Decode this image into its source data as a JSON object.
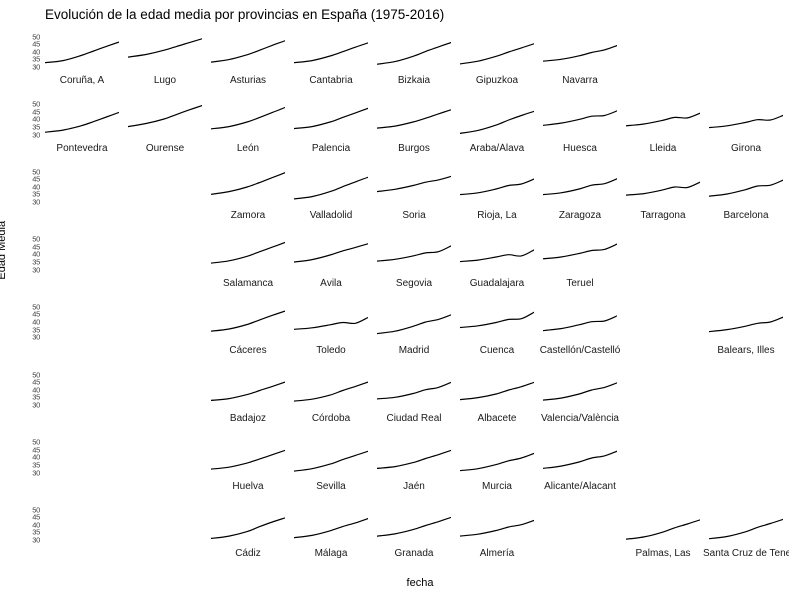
{
  "title": "Evolución de la edad media por provincias en España (1975-2016)",
  "axes": {
    "x_label": "fecha",
    "y_label": "Edad Media"
  },
  "colors": {
    "line": "#000000",
    "axis_text": "#404040",
    "strip_text": "#1a1a1a",
    "background": "#ffffff"
  },
  "chart_data": {
    "type": "line",
    "layout": "geofacet-grid-small-multiples",
    "title": "Evolución de la edad media por provincias en España (1975-2016)",
    "xlabel": "fecha",
    "ylabel": "Edad Media",
    "grid_rows": 8,
    "grid_cols": 9,
    "x": [
      1975,
      1985,
      1995,
      2002,
      2009,
      2016
    ],
    "x_range": [
      1975,
      2016
    ],
    "y_ticks": [
      50,
      45,
      40,
      35,
      30
    ],
    "y_range": [
      28,
      52.3
    ],
    "legend": "none",
    "facets": [
      {
        "label": "Coruña, A",
        "row": 1,
        "col": 1,
        "values": [
          32.8,
          34.2,
          37.5,
          40.5,
          43.5,
          46.3
        ]
      },
      {
        "label": "Lugo",
        "row": 1,
        "col": 2,
        "values": [
          36.5,
          38.2,
          41.0,
          43.5,
          46.0,
          48.5
        ]
      },
      {
        "label": "Asturias",
        "row": 1,
        "col": 3,
        "values": [
          33.2,
          34.8,
          38.0,
          41.0,
          44.2,
          47.2
        ]
      },
      {
        "label": "Cantabria",
        "row": 1,
        "col": 4,
        "values": [
          32.8,
          34.2,
          37.2,
          40.0,
          43.0,
          45.8
        ]
      },
      {
        "label": "Bizkaia",
        "row": 1,
        "col": 5,
        "values": [
          31.8,
          33.5,
          37.0,
          40.2,
          43.2,
          46.0
        ]
      },
      {
        "label": "Gipuzkoa",
        "row": 1,
        "col": 6,
        "values": [
          32.0,
          33.8,
          37.0,
          39.8,
          42.5,
          45.2
        ]
      },
      {
        "label": "Navarra",
        "row": 1,
        "col": 7,
        "values": [
          33.8,
          35.0,
          37.3,
          39.5,
          41.2,
          44.0
        ]
      },
      {
        "label": "Pontevedra",
        "row": 2,
        "col": 1,
        "values": [
          31.8,
          33.2,
          36.0,
          38.8,
          41.8,
          44.8
        ]
      },
      {
        "label": "Ourense",
        "row": 2,
        "col": 2,
        "values": [
          35.5,
          37.5,
          40.5,
          43.5,
          46.5,
          49.3
        ]
      },
      {
        "label": "León",
        "row": 2,
        "col": 3,
        "values": [
          34.0,
          35.5,
          38.5,
          41.5,
          44.8,
          48.0
        ]
      },
      {
        "label": "Palencia",
        "row": 2,
        "col": 4,
        "values": [
          34.2,
          35.5,
          38.5,
          41.5,
          44.5,
          47.5
        ]
      },
      {
        "label": "Burgos",
        "row": 2,
        "col": 5,
        "values": [
          34.5,
          35.8,
          38.5,
          41.0,
          43.8,
          46.5
        ]
      },
      {
        "label": "Araba/Álava",
        "row": 2,
        "col": 6,
        "values": [
          31.0,
          33.0,
          36.5,
          39.8,
          42.8,
          45.5
        ]
      },
      {
        "label": "Huesca",
        "row": 2,
        "col": 7,
        "values": [
          36.3,
          37.8,
          40.2,
          42.3,
          42.8,
          45.8
        ]
      },
      {
        "label": "Lleida",
        "row": 2,
        "col": 8,
        "values": [
          36.0,
          37.2,
          39.5,
          41.5,
          41.2,
          44.3
        ]
      },
      {
        "label": "Girona",
        "row": 2,
        "col": 9,
        "values": [
          34.8,
          36.0,
          38.2,
          40.0,
          39.8,
          42.8
        ]
      },
      {
        "label": "Zamora",
        "row": 3,
        "col": 3,
        "values": [
          35.0,
          36.8,
          39.8,
          42.8,
          46.0,
          49.2
        ]
      },
      {
        "label": "Valladolid",
        "row": 3,
        "col": 4,
        "values": [
          32.0,
          33.5,
          36.8,
          40.0,
          43.2,
          46.2
        ]
      },
      {
        "label": "Soria",
        "row": 3,
        "col": 5,
        "values": [
          36.8,
          38.3,
          40.8,
          43.0,
          44.5,
          46.8
        ]
      },
      {
        "label": "Rioja, La",
        "row": 3,
        "col": 6,
        "values": [
          34.8,
          36.0,
          38.5,
          40.8,
          41.8,
          45.0
        ]
      },
      {
        "label": "Zaragoza",
        "row": 3,
        "col": 7,
        "values": [
          34.8,
          36.0,
          38.5,
          41.0,
          42.0,
          45.2
        ]
      },
      {
        "label": "Tarragona",
        "row": 3,
        "col": 8,
        "values": [
          34.5,
          35.5,
          37.8,
          39.8,
          39.5,
          43.0
        ]
      },
      {
        "label": "Barcelona",
        "row": 3,
        "col": 9,
        "values": [
          33.8,
          35.2,
          38.0,
          40.5,
          41.0,
          44.3
        ]
      },
      {
        "label": "Salamanca",
        "row": 4,
        "col": 3,
        "values": [
          34.5,
          36.0,
          39.0,
          42.0,
          45.0,
          48.0
        ]
      },
      {
        "label": "Ávila",
        "row": 4,
        "col": 4,
        "values": [
          35.2,
          36.8,
          39.8,
          42.5,
          44.8,
          47.2
        ]
      },
      {
        "label": "Segovia",
        "row": 4,
        "col": 5,
        "values": [
          35.8,
          37.0,
          39.2,
          41.2,
          42.0,
          45.8
        ]
      },
      {
        "label": "Guadalajara",
        "row": 4,
        "col": 6,
        "values": [
          35.5,
          36.5,
          38.5,
          40.0,
          39.2,
          43.2
        ]
      },
      {
        "label": "Teruel",
        "row": 4,
        "col": 7,
        "values": [
          37.3,
          38.5,
          40.8,
          42.8,
          43.5,
          47.0
        ]
      },
      {
        "label": "Cáceres",
        "row": 5,
        "col": 3,
        "values": [
          33.8,
          35.2,
          38.2,
          41.2,
          44.2,
          47.0
        ]
      },
      {
        "label": "Toledo",
        "row": 5,
        "col": 4,
        "values": [
          35.0,
          36.0,
          38.0,
          39.5,
          39.0,
          42.8
        ]
      },
      {
        "label": "Madrid",
        "row": 5,
        "col": 5,
        "values": [
          32.2,
          33.8,
          37.0,
          39.8,
          41.5,
          44.5
        ]
      },
      {
        "label": "Cuenca",
        "row": 5,
        "col": 6,
        "values": [
          36.2,
          37.3,
          39.5,
          41.5,
          42.0,
          46.2
        ]
      },
      {
        "label": "Castellón/Castelló",
        "row": 5,
        "col": 7,
        "values": [
          34.2,
          35.5,
          38.0,
          40.0,
          40.5,
          43.8
        ]
      },
      {
        "label": "Balears, Illes",
        "row": 5,
        "col": 9,
        "values": [
          33.5,
          34.8,
          37.0,
          39.0,
          39.8,
          43.0
        ]
      },
      {
        "label": "Badajoz",
        "row": 6,
        "col": 3,
        "values": [
          33.0,
          34.2,
          36.8,
          39.5,
          42.2,
          45.0
        ]
      },
      {
        "label": "Córdoba",
        "row": 6,
        "col": 4,
        "values": [
          32.5,
          33.8,
          36.5,
          39.5,
          42.2,
          45.0
        ]
      },
      {
        "label": "Ciudad Real",
        "row": 6,
        "col": 5,
        "values": [
          34.0,
          35.0,
          37.5,
          40.0,
          41.5,
          44.8
        ]
      },
      {
        "label": "Albacete",
        "row": 6,
        "col": 6,
        "values": [
          33.5,
          34.8,
          37.2,
          39.8,
          42.0,
          44.8
        ]
      },
      {
        "label": "Valencia/València",
        "row": 6,
        "col": 7,
        "values": [
          33.2,
          34.5,
          37.2,
          39.8,
          41.5,
          44.5
        ]
      },
      {
        "label": "Huelva",
        "row": 7,
        "col": 3,
        "values": [
          32.5,
          33.8,
          36.5,
          39.2,
          42.0,
          44.8
        ]
      },
      {
        "label": "Sevilla",
        "row": 7,
        "col": 4,
        "values": [
          31.2,
          32.8,
          35.8,
          38.8,
          41.5,
          44.2
        ]
      },
      {
        "label": "Jaén",
        "row": 7,
        "col": 5,
        "values": [
          33.0,
          34.2,
          36.8,
          39.5,
          42.0,
          44.8
        ]
      },
      {
        "label": "Murcia",
        "row": 7,
        "col": 6,
        "values": [
          31.5,
          32.8,
          35.5,
          38.0,
          39.8,
          42.8
        ]
      },
      {
        "label": "Alicante/Alacant",
        "row": 7,
        "col": 7,
        "values": [
          33.0,
          34.5,
          37.2,
          39.8,
          41.2,
          44.3
        ]
      },
      {
        "label": "Cádiz",
        "row": 8,
        "col": 3,
        "values": [
          31.0,
          32.5,
          35.5,
          38.8,
          41.8,
          44.5
        ]
      },
      {
        "label": "Málaga",
        "row": 8,
        "col": 4,
        "values": [
          31.5,
          33.0,
          36.0,
          38.8,
          41.2,
          44.0
        ]
      },
      {
        "label": "Granada",
        "row": 8,
        "col": 5,
        "values": [
          32.5,
          34.0,
          36.8,
          39.5,
          42.0,
          44.8
        ]
      },
      {
        "label": "Almería",
        "row": 8,
        "col": 6,
        "values": [
          32.5,
          33.8,
          36.2,
          38.5,
          40.0,
          42.8
        ]
      },
      {
        "label": "Palmas, Las",
        "row": 8,
        "col": 8,
        "values": [
          30.5,
          32.0,
          35.0,
          38.0,
          40.5,
          43.2
        ]
      },
      {
        "label": "Santa Cruz de Tenerife",
        "row": 8,
        "col": 9,
        "values": [
          30.8,
          32.3,
          35.3,
          38.3,
          40.8,
          43.5
        ]
      }
    ]
  }
}
